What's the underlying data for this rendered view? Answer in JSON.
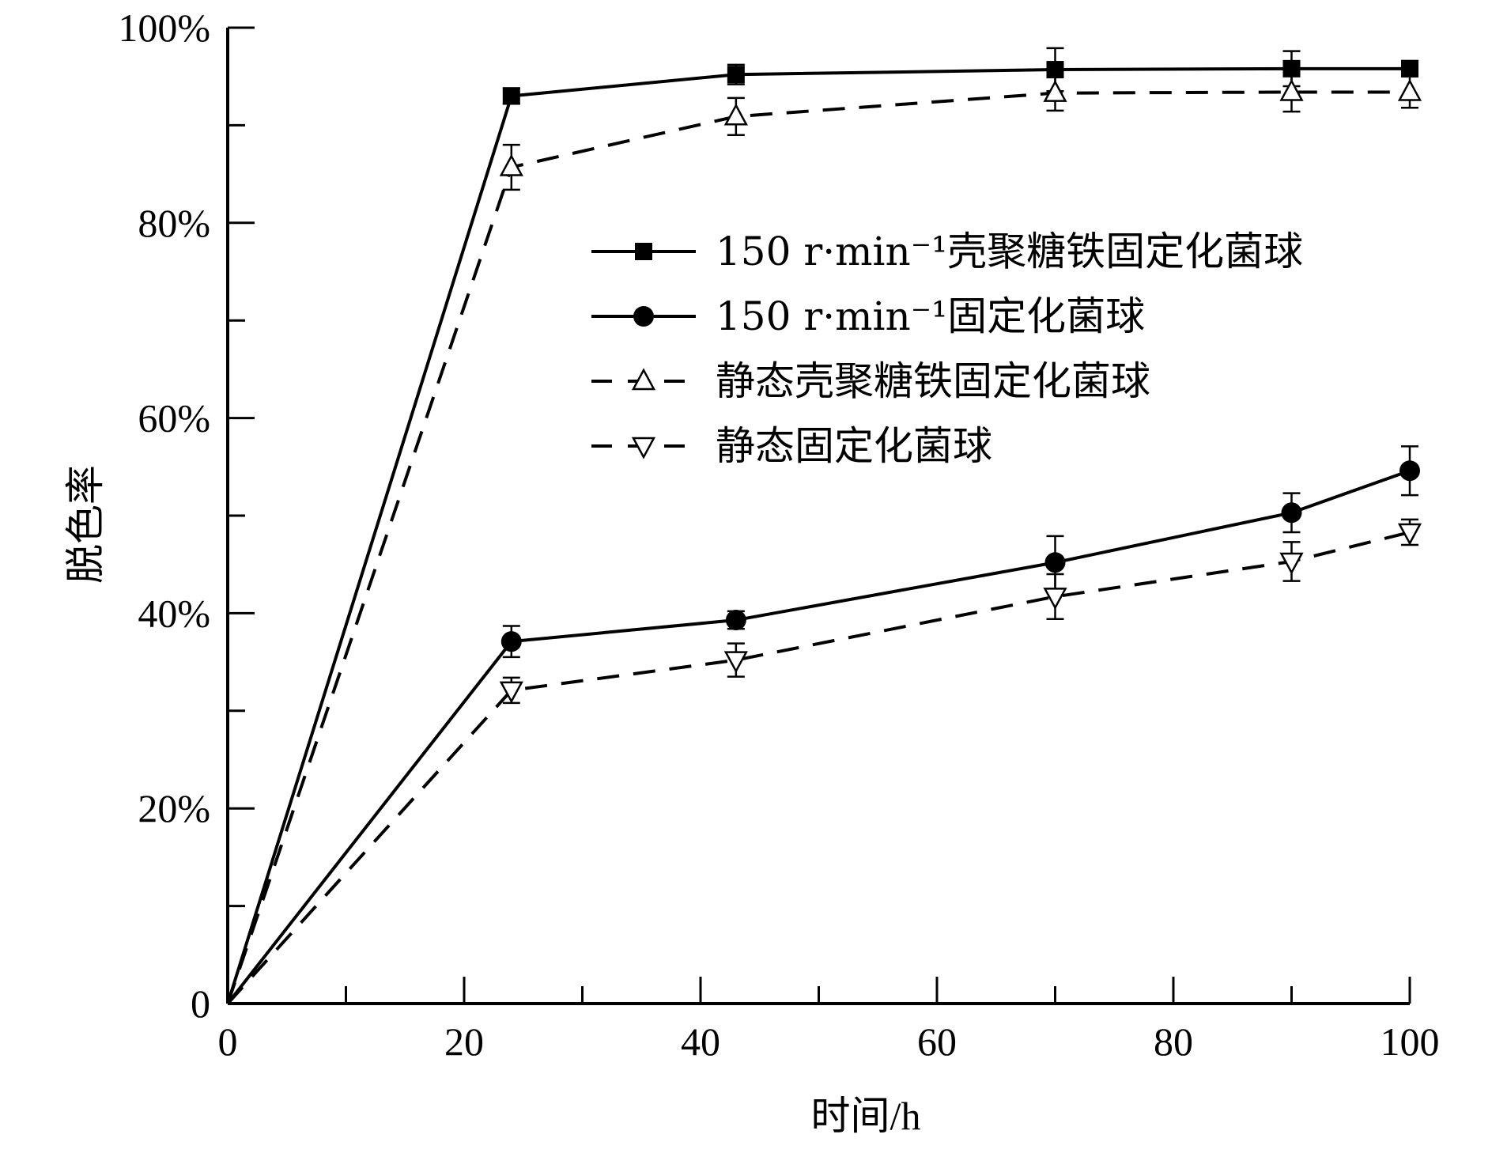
{
  "chart_data": {
    "type": "line",
    "xlabel": "时间/h",
    "ylabel": "脱色率",
    "xlim": [
      0,
      100
    ],
    "ylim": [
      0,
      100
    ],
    "x_ticks": [
      "0",
      "20",
      "40",
      "60",
      "80",
      "100"
    ],
    "y_ticks": [
      "0",
      "20%",
      "40%",
      "60%",
      "80%",
      "100%"
    ],
    "grid": false,
    "legend_position": "right",
    "series": [
      {
        "name": "150 r·min⁻¹壳聚糖铁固定化菌球",
        "style": "solid",
        "marker": "square-filled",
        "x": [
          0,
          24,
          43,
          70,
          90,
          100
        ],
        "y": [
          0,
          93.0,
          95.2,
          95.7,
          95.8,
          95.8
        ],
        "err": [
          0,
          0.8,
          1.0,
          2.2,
          1.8,
          0.8
        ]
      },
      {
        "name": "150 r·min⁻¹固定化菌球",
        "style": "solid",
        "marker": "circle-filled",
        "x": [
          0,
          24,
          43,
          70,
          90,
          100
        ],
        "y": [
          0,
          37.1,
          39.3,
          45.2,
          50.3,
          54.6
        ],
        "err": [
          0,
          1.6,
          0.9,
          2.7,
          2.0,
          2.5
        ]
      },
      {
        "name": "静态壳聚糖铁固定化菌球",
        "style": "dashed",
        "marker": "triangle-up-open",
        "x": [
          0,
          24,
          43,
          70,
          90,
          100
        ],
        "y": [
          0,
          85.7,
          90.9,
          93.3,
          93.4,
          93.4
        ],
        "err": [
          0,
          2.3,
          1.9,
          1.8,
          2.0,
          1.6
        ]
      },
      {
        "name": "静态固定化菌球",
        "style": "dashed",
        "marker": "triangle-down-open",
        "x": [
          0,
          24,
          43,
          70,
          90,
          100
        ],
        "y": [
          0,
          32.1,
          35.2,
          41.7,
          45.3,
          48.3
        ],
        "err": [
          0,
          1.3,
          1.7,
          2.3,
          2.0,
          1.3
        ]
      }
    ]
  }
}
